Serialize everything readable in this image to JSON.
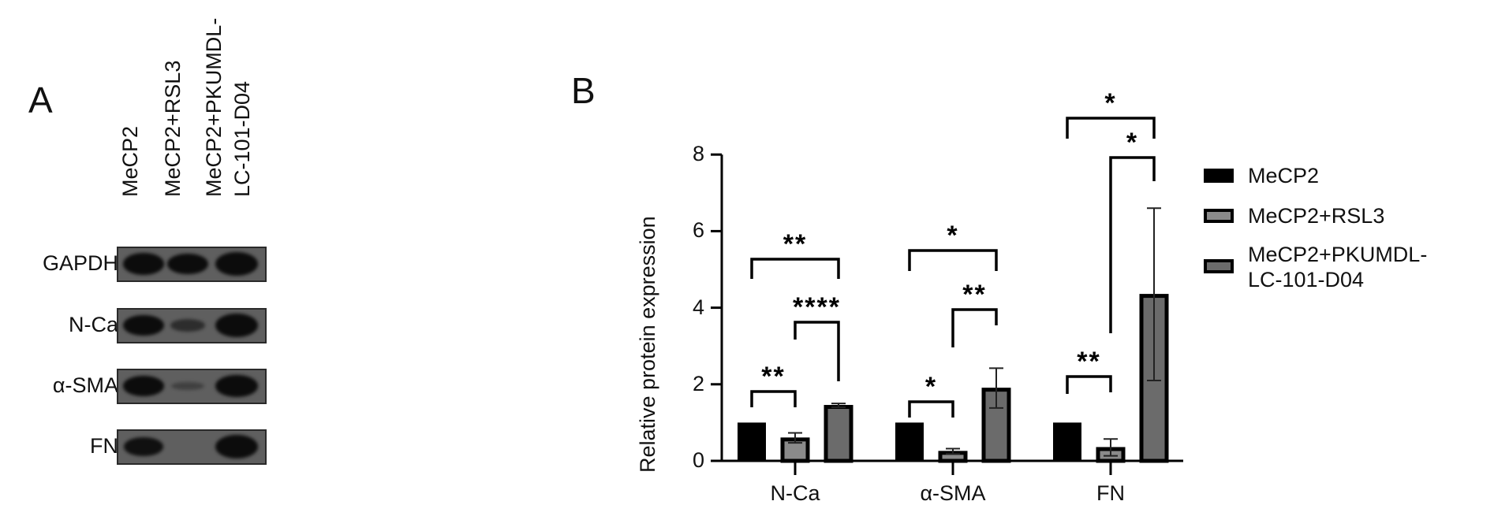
{
  "panel_a": {
    "letter": "A",
    "lanes": [
      "MeCP2",
      "MeCP2+RSL3",
      "MeCP2+PKUMDL-",
      "LC-101-D04"
    ],
    "blots": [
      {
        "label": "GAPDH",
        "bands": [
          0.9,
          0.85,
          1.0
        ]
      },
      {
        "label": "N-Ca",
        "bands": [
          0.85,
          0.35,
          1.0
        ]
      },
      {
        "label": "α-SMA",
        "bands": [
          0.8,
          0.12,
          0.95
        ]
      },
      {
        "label": "FN",
        "bands": [
          0.7,
          0.0,
          1.0
        ]
      }
    ]
  },
  "panel_b": {
    "letter": "B",
    "legend": [
      {
        "label": "MeCP2",
        "color": "#000000"
      },
      {
        "label": "MeCP2+RSL3",
        "color": "#8a8a8a"
      },
      {
        "label_line1": "MeCP2+PKUMDL-",
        "label_line2": "LC-101-D04",
        "color": "#6b6b6b"
      }
    ]
  },
  "chart_data": {
    "type": "bar",
    "title": "",
    "xlabel": "",
    "ylabel": "Relative protein expression",
    "ylim": [
      0,
      8
    ],
    "yticks": [
      0,
      2,
      4,
      6,
      8
    ],
    "grid": false,
    "legend_position": "right",
    "categories": [
      "N-Ca",
      "α-SMA",
      "FN"
    ],
    "series": [
      {
        "name": "MeCP2",
        "color": "#000000",
        "values": [
          1.0,
          1.0,
          1.0
        ],
        "errors": [
          0,
          0,
          0
        ]
      },
      {
        "name": "MeCP2+RSL3",
        "color": "#8a8a8a",
        "values": [
          0.6,
          0.25,
          0.35
        ],
        "errors": [
          0.13,
          0.07,
          0.22
        ]
      },
      {
        "name": "MeCP2+PKUMDL-LC-101-D04",
        "color": "#6b6b6b",
        "values": [
          1.45,
          1.9,
          4.35
        ],
        "errors": [
          0.05,
          0.52,
          2.25
        ]
      }
    ],
    "annotations": [
      {
        "category": "N-Ca",
        "compare": [
          "MeCP2",
          "MeCP2+RSL3"
        ],
        "label": "**"
      },
      {
        "category": "N-Ca",
        "compare": [
          "MeCP2+RSL3",
          "MeCP2+PKUMDL-LC-101-D04"
        ],
        "label": "****"
      },
      {
        "category": "N-Ca",
        "compare": [
          "MeCP2",
          "MeCP2+PKUMDL-LC-101-D04"
        ],
        "label": "**"
      },
      {
        "category": "α-SMA",
        "compare": [
          "MeCP2",
          "MeCP2+RSL3"
        ],
        "label": "*"
      },
      {
        "category": "α-SMA",
        "compare": [
          "MeCP2+RSL3",
          "MeCP2+PKUMDL-LC-101-D04"
        ],
        "label": "**"
      },
      {
        "category": "α-SMA",
        "compare": [
          "MeCP2",
          "MeCP2+PKUMDL-LC-101-D04"
        ],
        "label": "*"
      },
      {
        "category": "FN",
        "compare": [
          "MeCP2",
          "MeCP2+RSL3"
        ],
        "label": "**"
      },
      {
        "category": "FN",
        "compare": [
          "MeCP2+RSL3",
          "MeCP2+PKUMDL-LC-101-D04"
        ],
        "label": "*"
      },
      {
        "category": "FN",
        "compare": [
          "MeCP2",
          "MeCP2+PKUMDL-LC-101-D04"
        ],
        "label": "*"
      }
    ]
  }
}
